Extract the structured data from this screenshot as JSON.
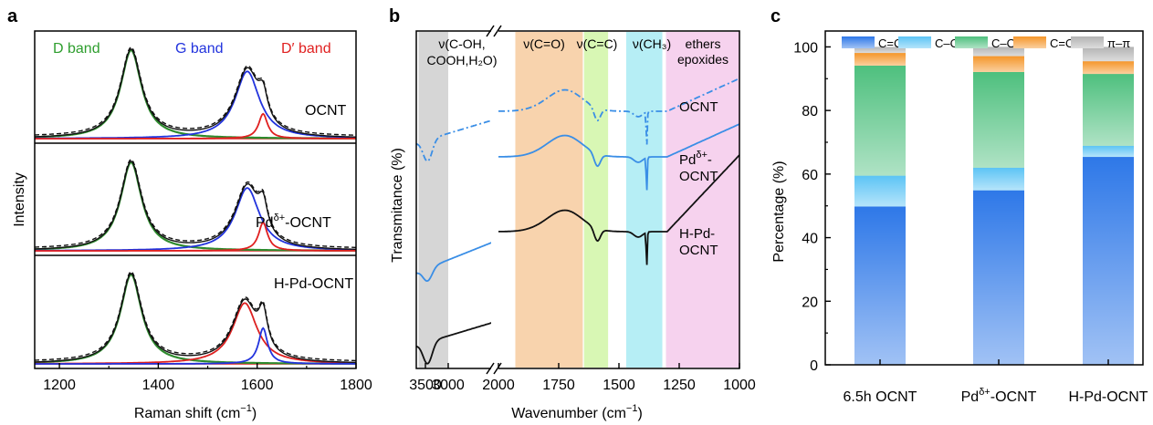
{
  "panel_labels": [
    "a",
    "b",
    "c"
  ],
  "chart_data": [
    {
      "panel": "a",
      "type": "line",
      "xlabel": "Raman shift (cm",
      "xlabel_sup": "−1",
      "xlabel_tail": ")",
      "ylabel": "Intensity",
      "xlim": [
        1150,
        1800
      ],
      "xticks": [
        1200,
        1400,
        1600,
        1800
      ],
      "band_labels": [
        {
          "text": "D band",
          "color": "#2e9e2e"
        },
        {
          "text": "G band",
          "color": "#2233dd"
        },
        {
          "text": "D′ band",
          "color": "#e02020"
        }
      ],
      "subpanels": [
        {
          "label_main": "OCNT",
          "label_sup": "",
          "label_tail": "",
          "d": {
            "center": 1345,
            "height": 1.0,
            "width": 26
          },
          "g": {
            "center": 1580,
            "height": 0.76,
            "width": 30
          },
          "dp": {
            "center": 1612,
            "height": 0.28,
            "width": 11
          }
        },
        {
          "label_main": "Pd",
          "label_sup": "δ+",
          "label_tail": "-OCNT",
          "d": {
            "center": 1345,
            "height": 1.0,
            "width": 26
          },
          "g": {
            "center": 1580,
            "height": 0.71,
            "width": 30
          },
          "dp": {
            "center": 1612,
            "height": 0.32,
            "width": 11
          }
        },
        {
          "label_main": "H-Pd-OCNT",
          "label_sup": "",
          "label_tail": "",
          "d": {
            "center": 1345,
            "height": 1.0,
            "width": 26
          },
          "g": {
            "center": 1575,
            "height": 0.68,
            "width": 30,
            "color": "#dd2020"
          },
          "dp": {
            "center": 1612,
            "height": 0.4,
            "width": 11,
            "color": "#2233dd"
          }
        }
      ],
      "series_colors": {
        "d": "#2e8b2e",
        "g": "#2233dd",
        "dp": "#e02020",
        "data": "#111111",
        "fit": "#111111"
      }
    },
    {
      "panel": "b",
      "type": "line",
      "xlabel": "Wavenumber (cm",
      "xlabel_sup": "−1",
      "xlabel_tail": ")",
      "ylabel": "Transmitance (%)",
      "x_left_range": [
        3700,
        2000
      ],
      "x_right_range": [
        2000,
        1000
      ],
      "xticks_left": [
        3500,
        3000
      ],
      "xticks_right": [
        2000,
        1750,
        1500,
        1250,
        1000
      ],
      "regions": [
        {
          "x": [
            3650,
            3000
          ],
          "segment": "left",
          "color": "#d6d6d6"
        },
        {
          "x": [
            1930,
            1650
          ],
          "segment": "right",
          "color": "#f8d3ad"
        },
        {
          "x": [
            1645,
            1545
          ],
          "segment": "right",
          "color": "#d8f7b4"
        },
        {
          "x": [
            1470,
            1320
          ],
          "segment": "right",
          "color": "#b6eef5"
        },
        {
          "x": [
            1305,
            1000
          ],
          "segment": "right",
          "color": "#f6d2ee"
        }
      ],
      "annotations": [
        {
          "text": "ν(C-OH,",
          "line2": "COOH,H₂O)"
        },
        {
          "text": "ν(C=O)"
        },
        {
          "text": "ν(C=C)"
        },
        {
          "text": "ν(CH₃)"
        },
        {
          "text": "ethers",
          "line2": "epoxides"
        }
      ],
      "series": [
        {
          "name": "OCNT",
          "name2": "",
          "color": "#3a8ee6",
          "dash": "dashdot"
        },
        {
          "name": "Pd",
          "name_sup": "δ+",
          "name_tail": "-",
          "name2": "OCNT",
          "color": "#3a8ee6",
          "dash": "solid"
        },
        {
          "name": "H-Pd-",
          "name2": "OCNT",
          "color": "#111111",
          "dash": "solid"
        }
      ]
    },
    {
      "panel": "c",
      "type": "bar",
      "stacked": true,
      "ylabel": "Percentage (%)",
      "ylim": [
        0,
        105
      ],
      "yticks": [
        0,
        20,
        40,
        60,
        80,
        100
      ],
      "categories": [
        {
          "main": "6.5h OCNT",
          "sup": "",
          "tail": ""
        },
        {
          "main": "Pd",
          "sup": "δ+",
          "tail": "-OCNT"
        },
        {
          "main": "H-Pd-OCNT",
          "sup": "",
          "tail": ""
        }
      ],
      "legend_position": "top",
      "series": [
        {
          "name": "C=C",
          "color": "#2e78e8",
          "values": [
            49.8,
            54.9,
            65.4
          ]
        },
        {
          "name": "C–C",
          "color": "#5cc4f5",
          "values": [
            9.7,
            7.1,
            3.5
          ]
        },
        {
          "name": "C–O",
          "color": "#4ec07e",
          "values": [
            34.6,
            30.1,
            22.6
          ]
        },
        {
          "name": "C=O",
          "color": "#f5962a",
          "values": [
            4.0,
            5.0,
            4.0
          ]
        },
        {
          "name": "π–π",
          "color": "#b3b3b3",
          "values": [
            1.9,
            2.9,
            4.5
          ]
        }
      ]
    }
  ]
}
